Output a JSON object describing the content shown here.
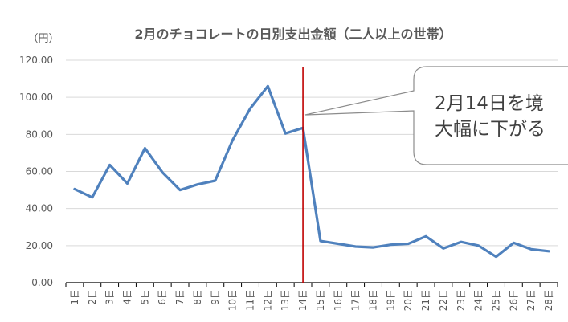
{
  "chart_data": {
    "type": "line",
    "title": "2月のチョコレートの日別支出金額（二人以上の世帯）",
    "ylabel": "（円）",
    "xlabel": "",
    "ylim": [
      0,
      120
    ],
    "yticks": [
      "0.00",
      "20.00",
      "40.00",
      "60.00",
      "80.00",
      "100.00",
      "120.00"
    ],
    "categories": [
      "1日",
      "2日",
      "3日",
      "4日",
      "5日",
      "6日",
      "7日",
      "8日",
      "9日",
      "10日",
      "11日",
      "12日",
      "13日",
      "14日",
      "15日",
      "16日",
      "17日",
      "18日",
      "19日",
      "20日",
      "21日",
      "22日",
      "23日",
      "24日",
      "25日",
      "26日",
      "27日",
      "28日"
    ],
    "series": [
      {
        "values": [
          50.5,
          46,
          63.5,
          53.5,
          72.5,
          59.5,
          50,
          53,
          55,
          77,
          94,
          106,
          80.5,
          83.5,
          22.5,
          21,
          19.5,
          19,
          20.5,
          21,
          25,
          18.5,
          22,
          20,
          14,
          21.5,
          18,
          17
        ]
      }
    ],
    "line_color": "#4f81bd",
    "marker_line": {
      "category": "14日",
      "color": "#c00000"
    },
    "callout": {
      "line1": "2月14日を境",
      "line2": "大幅に下がる"
    },
    "grid": true,
    "legend": "none"
  }
}
